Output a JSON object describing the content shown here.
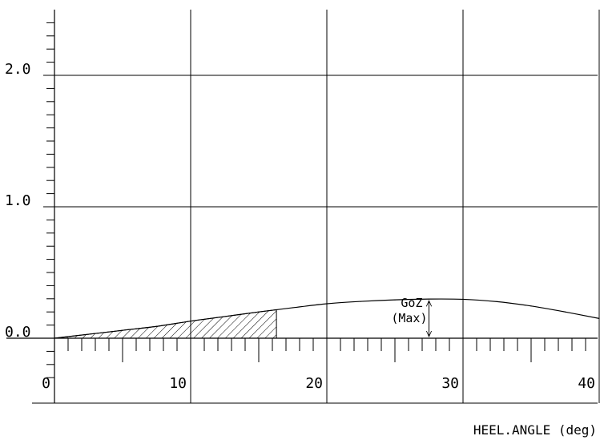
{
  "chart_data": {
    "type": "line",
    "title": "",
    "xlabel": "HEEL.ANGLE (deg)",
    "ylabel": "",
    "xlim": [
      0,
      40.5
    ],
    "ylim": [
      -0.36,
      2.48
    ],
    "x_ticks": [
      {
        "value": 0,
        "label": "0"
      },
      {
        "value": 10,
        "label": "10"
      },
      {
        "value": 20,
        "label": "20"
      },
      {
        "value": 30,
        "label": "30"
      },
      {
        "value": 40,
        "label": "40"
      }
    ],
    "y_ticks": [
      {
        "value": 0.0,
        "label": "0.0"
      },
      {
        "value": 1.0,
        "label": "1.0"
      },
      {
        "value": 2.0,
        "label": "2.0"
      }
    ],
    "grid": true,
    "series": [
      {
        "name": "",
        "color": "#000000",
        "x": [
          0,
          2.5,
          5,
          7.5,
          10,
          12.5,
          15,
          17.5,
          20,
          22.5,
          25,
          27.5,
          30,
          32.5,
          35,
          37.5,
          40
        ],
        "y": [
          0,
          0.03,
          0.06,
          0.09,
          0.13,
          0.165,
          0.2,
          0.232,
          0.262,
          0.28,
          0.292,
          0.298,
          0.296,
          0.278,
          0.245,
          0.2,
          0.15
        ]
      }
    ],
    "hatched_area": {
      "x_start": 0,
      "x_end": 16.3
    },
    "annotations": [
      {
        "text": "GoZ",
        "x": 27.5
      },
      {
        "text": "(Max)",
        "x": 27.5
      }
    ],
    "goz_max": {
      "x": 27.5,
      "y": 0.298
    }
  }
}
